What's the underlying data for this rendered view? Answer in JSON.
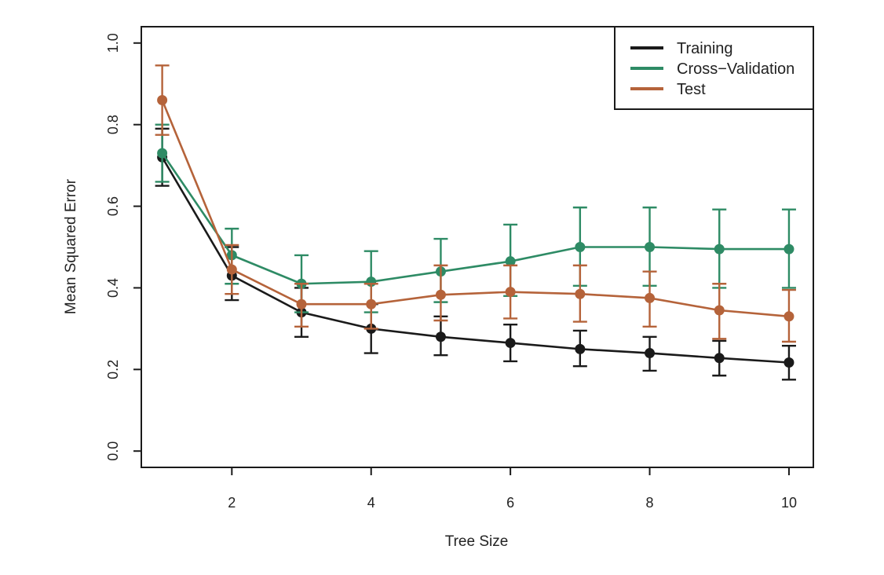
{
  "chart_data": {
    "type": "line",
    "title": "",
    "xlabel": "Tree Size",
    "ylabel": "Mean Squared Error",
    "xlim": [
      0.7,
      10.35
    ],
    "ylim": [
      -0.04,
      1.04
    ],
    "xticks": [
      2,
      4,
      6,
      8,
      10
    ],
    "yticks": [
      0.0,
      0.2,
      0.4,
      0.6,
      0.8,
      1.0
    ],
    "xtick_labels": [
      "2",
      "4",
      "6",
      "8",
      "10"
    ],
    "ytick_labels": [
      "0.0",
      "0.2",
      "0.4",
      "0.6",
      "0.8",
      "1.0"
    ],
    "grid": false,
    "legend_position": "top-right",
    "x": [
      1,
      2,
      3,
      4,
      5,
      6,
      7,
      8,
      9,
      10
    ],
    "series": [
      {
        "name": "Training",
        "color": "#1a1a1a",
        "values": [
          0.72,
          0.43,
          0.34,
          0.3,
          0.28,
          0.265,
          0.25,
          0.24,
          0.228,
          0.217
        ],
        "err_low": [
          0.65,
          0.37,
          0.28,
          0.24,
          0.235,
          0.22,
          0.208,
          0.197,
          0.185,
          0.175
        ],
        "err_high": [
          0.79,
          0.5,
          0.4,
          0.36,
          0.33,
          0.31,
          0.295,
          0.28,
          0.27,
          0.258
        ]
      },
      {
        "name": "Cross−Validation",
        "color": "#2e8b65",
        "values": [
          0.73,
          0.48,
          0.41,
          0.415,
          0.44,
          0.465,
          0.5,
          0.5,
          0.495,
          0.495
        ],
        "err_low": [
          0.66,
          0.41,
          0.34,
          0.34,
          0.365,
          0.38,
          0.405,
          0.405,
          0.4,
          0.4
        ],
        "err_high": [
          0.8,
          0.545,
          0.48,
          0.49,
          0.52,
          0.555,
          0.597,
          0.597,
          0.592,
          0.592
        ]
      },
      {
        "name": "Test",
        "color": "#b5633a",
        "values": [
          0.86,
          0.445,
          0.36,
          0.36,
          0.383,
          0.39,
          0.385,
          0.375,
          0.345,
          0.33
        ],
        "err_low": [
          0.775,
          0.385,
          0.305,
          0.3,
          0.32,
          0.325,
          0.317,
          0.305,
          0.275,
          0.268
        ],
        "err_high": [
          0.945,
          0.505,
          0.41,
          0.41,
          0.455,
          0.455,
          0.455,
          0.44,
          0.41,
          0.395
        ]
      }
    ]
  }
}
